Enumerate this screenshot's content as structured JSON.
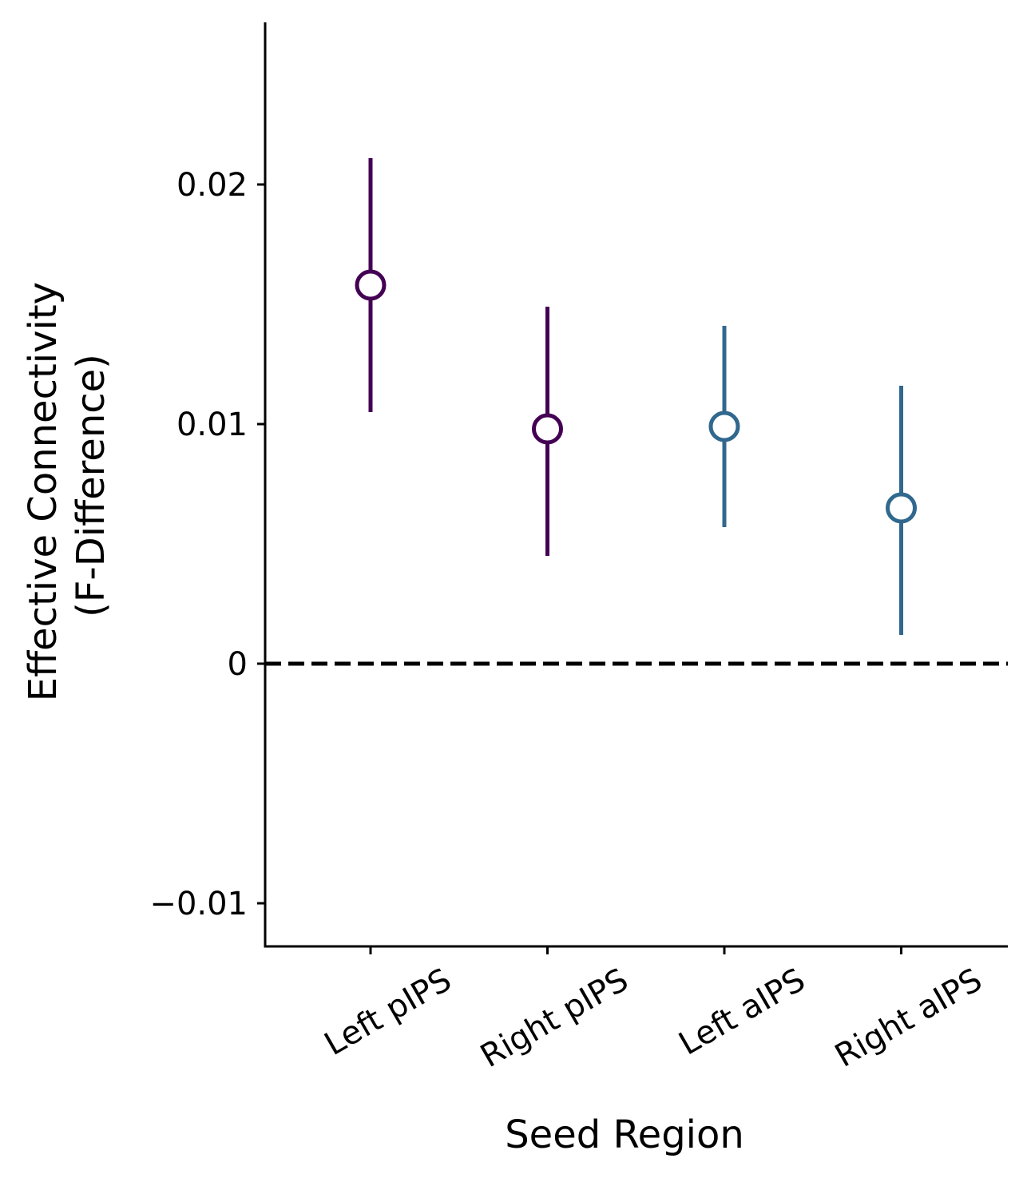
{
  "chart_data": {
    "type": "scatter",
    "title": "",
    "xlabel": "Seed Region",
    "ylabel_lines": [
      "Effective Connectivity",
      "(F-Difference)"
    ],
    "categories": [
      "Left pIPS",
      "Right pIPS",
      "Left aIPS",
      "Right aIPS"
    ],
    "values": [
      0.0158,
      0.0098,
      0.0099,
      0.0065
    ],
    "error_low": [
      0.0105,
      0.0045,
      0.0057,
      0.0012
    ],
    "error_high": [
      0.0211,
      0.0149,
      0.0141,
      0.0116
    ],
    "colors": [
      "#440154",
      "#440154",
      "#31688e",
      "#31688e"
    ],
    "ylim": [
      -0.0118,
      0.0268
    ],
    "yticks": [
      -0.01,
      0,
      0.01,
      0.02
    ],
    "ytick_labels": [
      "−0.01",
      "0",
      "0.01",
      "0.02"
    ],
    "reference_line": {
      "y": 0,
      "style": "dashed",
      "color": "#000000"
    },
    "marker": "open-circle",
    "grid": false
  }
}
